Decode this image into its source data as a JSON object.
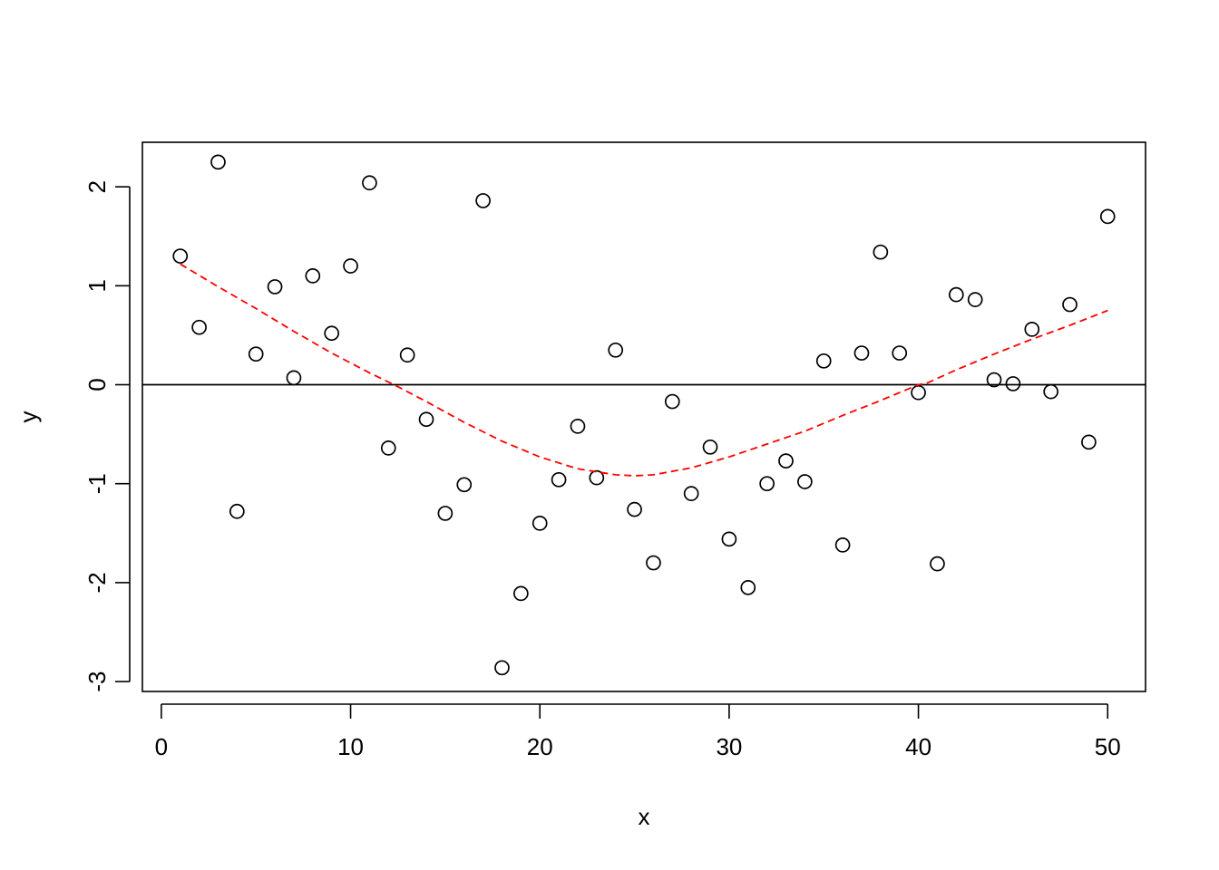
{
  "chart_data": {
    "type": "scatter",
    "title": "",
    "xlabel": "x",
    "ylabel": "y",
    "xlim": [
      -1,
      52
    ],
    "ylim": [
      -3.1,
      2.45
    ],
    "x_ticks": [
      0,
      10,
      20,
      30,
      40,
      50
    ],
    "y_ticks": [
      -3,
      -2,
      -1,
      0,
      1,
      2
    ],
    "grid": false,
    "legend": "none",
    "reference_line": {
      "y": 0,
      "color": "#000000"
    },
    "series": [
      {
        "type": "scatter",
        "marker": "open-circle",
        "color": "#000000",
        "x": [
          1,
          2,
          3,
          4,
          5,
          6,
          7,
          8,
          9,
          10,
          11,
          12,
          13,
          14,
          15,
          16,
          17,
          18,
          19,
          20,
          21,
          22,
          23,
          24,
          25,
          26,
          27,
          28,
          29,
          30,
          31,
          32,
          33,
          34,
          35,
          36,
          37,
          38,
          39,
          40,
          41,
          42,
          43,
          44,
          45,
          46,
          47,
          48,
          49,
          50
        ],
        "y": [
          1.3,
          0.58,
          2.25,
          -1.28,
          0.31,
          0.99,
          0.07,
          1.1,
          0.52,
          1.2,
          2.04,
          -0.64,
          0.3,
          -0.35,
          -1.3,
          -1.01,
          1.86,
          -2.86,
          -2.11,
          -1.4,
          -0.96,
          -0.42,
          -0.94,
          0.35,
          -1.26,
          -1.8,
          -0.17,
          -1.1,
          -0.63,
          -1.56,
          -2.05,
          -1.0,
          -0.77,
          -0.98,
          0.24,
          -1.62,
          0.32,
          1.34,
          0.32,
          -0.08,
          -1.81,
          0.91,
          0.86,
          0.05,
          0.01,
          0.56,
          -0.07,
          0.81,
          -0.58,
          1.7
        ]
      },
      {
        "type": "line",
        "style": "dashed",
        "color": "#ff0000",
        "x": [
          1,
          3,
          5,
          7,
          9,
          11,
          12.5,
          14,
          16,
          18,
          20,
          22,
          24,
          25,
          26,
          28,
          30,
          32,
          34,
          36,
          38,
          40,
          40.5,
          42,
          44,
          46,
          48,
          50
        ],
        "y": [
          1.22,
          0.99,
          0.77,
          0.54,
          0.32,
          0.12,
          -0.02,
          -0.17,
          -0.38,
          -0.57,
          -0.73,
          -0.85,
          -0.91,
          -0.92,
          -0.91,
          -0.84,
          -0.73,
          -0.6,
          -0.47,
          -0.31,
          -0.16,
          0.0,
          0.02,
          0.15,
          0.31,
          0.46,
          0.6,
          0.75
        ]
      }
    ]
  }
}
